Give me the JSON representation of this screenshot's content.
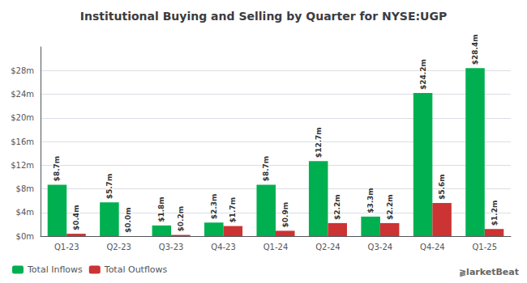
{
  "chart_data": {
    "type": "bar",
    "title": "Institutional Buying and Selling by Quarter for NYSE:UGP",
    "categories": [
      "Q1-23",
      "Q2-23",
      "Q3-23",
      "Q4-23",
      "Q1-24",
      "Q2-24",
      "Q3-24",
      "Q4-24",
      "Q1-25"
    ],
    "series": [
      {
        "name": "Total Inflows",
        "color": "#00b050",
        "values": [
          8.7,
          5.7,
          1.8,
          2.3,
          8.7,
          12.7,
          3.3,
          24.2,
          28.4
        ],
        "value_labels": [
          "$8.7m",
          "$5.7m",
          "$1.8m",
          "$2.3m",
          "$8.7m",
          "$12.7m",
          "$3.3m",
          "$24.2m",
          "$28.4m"
        ]
      },
      {
        "name": "Total Outflows",
        "color": "#cc3333",
        "values": [
          0.4,
          0.0,
          0.2,
          1.7,
          0.9,
          2.2,
          2.2,
          5.6,
          1.2
        ],
        "value_labels": [
          "$0.4m",
          "$0.0m",
          "$0.2m",
          "$1.7m",
          "$0.9m",
          "$2.2m",
          "$2.2m",
          "$5.6m",
          "$1.2m"
        ]
      }
    ],
    "ylim": [
      0,
      32
    ],
    "yticks": [
      {
        "value": 0,
        "label": "$0m"
      },
      {
        "value": 4,
        "label": "$4m"
      },
      {
        "value": 8,
        "label": "$8m"
      },
      {
        "value": 12,
        "label": "$12m"
      },
      {
        "value": 16,
        "label": "$16m"
      },
      {
        "value": 20,
        "label": "$20m"
      },
      {
        "value": 24,
        "label": "$24m"
      },
      {
        "value": 28,
        "label": "$28m"
      }
    ],
    "grid": true,
    "legend": "lower left",
    "data_labels": true,
    "annotations": [
      "⫺larketBeat"
    ]
  }
}
